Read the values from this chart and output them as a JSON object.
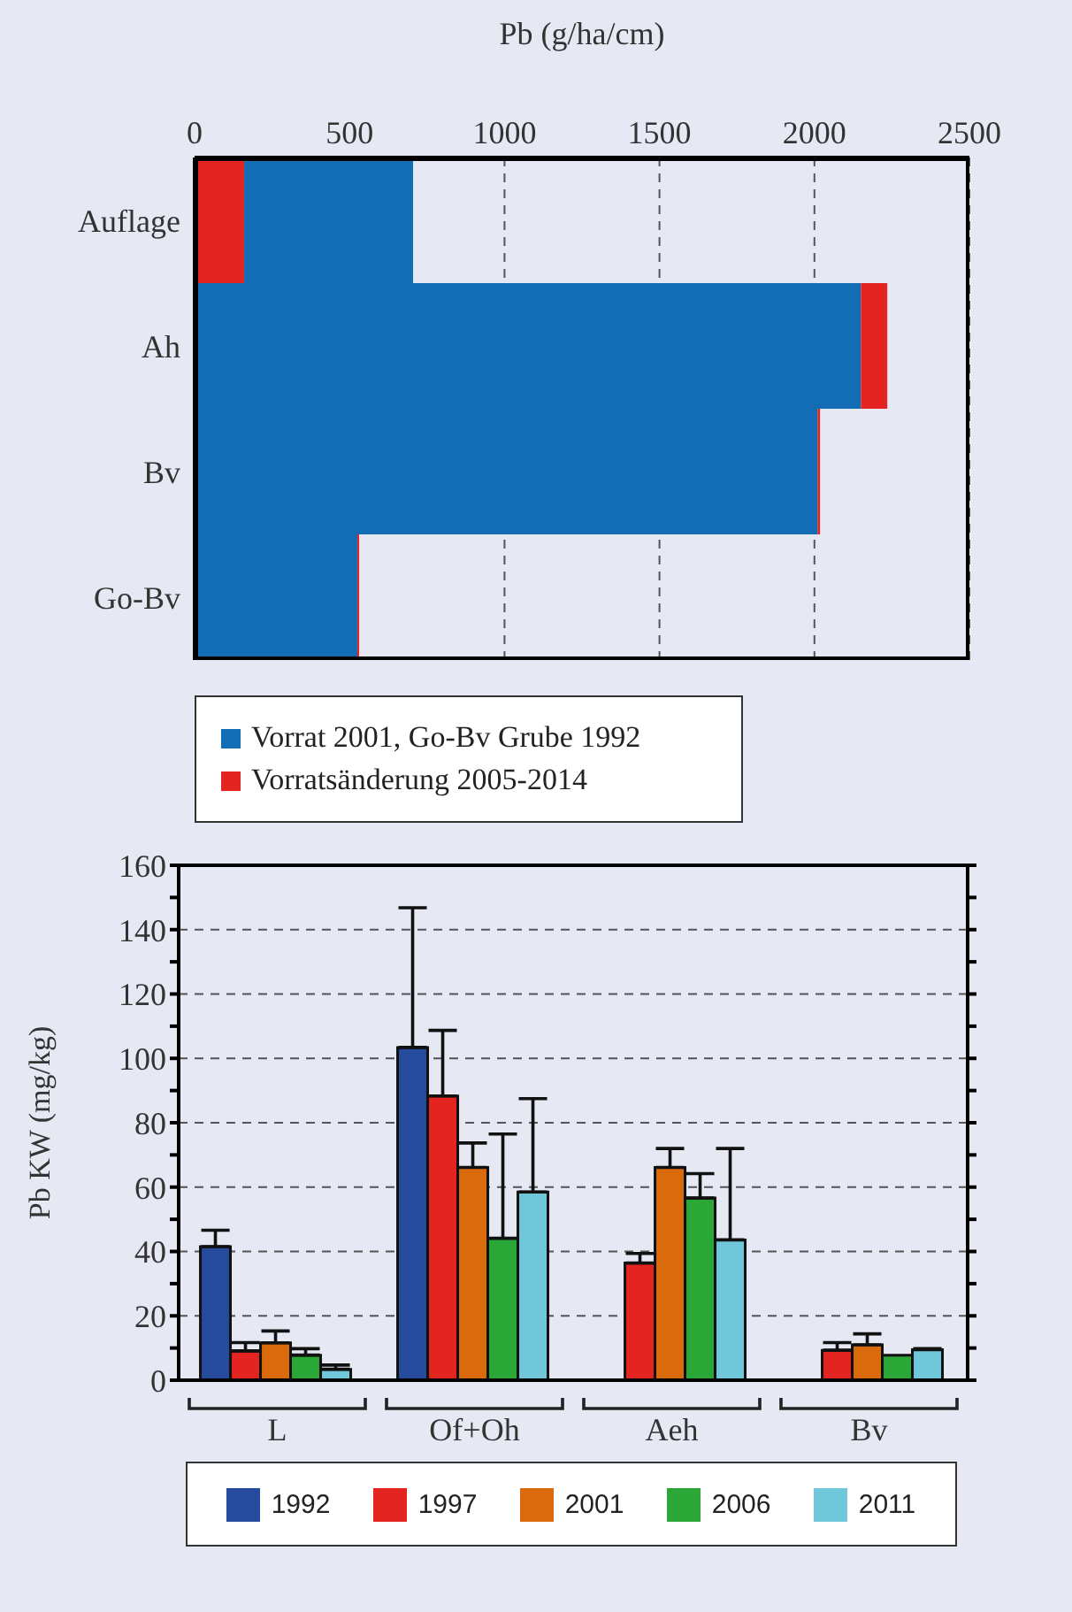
{
  "chart_data": [
    {
      "type": "bar",
      "orientation": "horizontal",
      "xlabel": "Pb (g/ha/cm)",
      "categories": [
        "Auflage",
        "Ah",
        "Bv",
        "Go-Bv"
      ],
      "xlim": [
        0,
        2500
      ],
      "xticks": [
        0,
        500,
        1000,
        1500,
        2000,
        2500
      ],
      "grid": "x",
      "legend": "bottom",
      "series": [
        {
          "name": "Vorrat 2001, Go-Bv Grube 1992",
          "color": "#136db5",
          "values": [
            545,
            2150,
            2010,
            525
          ],
          "base": [
            160,
            0,
            0,
            0
          ]
        },
        {
          "name": "Vorratsänderung 2005-2014",
          "color": "#e32420",
          "values": [
            160,
            85,
            8,
            6
          ],
          "base": [
            0,
            2150,
            2010,
            525
          ]
        }
      ]
    },
    {
      "type": "bar",
      "ylabel": "Pb KW (mg/kg)",
      "categories": [
        "L",
        "Of+Oh",
        "Aeh",
        "Bv"
      ],
      "ylim": [
        0,
        160
      ],
      "yticks": [
        0,
        {
          "value": 10,
          "label": null
        },
        20,
        {
          "value": 30,
          "label": null
        },
        40,
        {
          "value": 50,
          "label": null
        },
        60,
        {
          "value": 70,
          "label": null
        },
        80,
        {
          "value": 90,
          "label": null
        },
        100,
        {
          "value": 110,
          "label": null
        },
        120,
        {
          "value": 130,
          "label": null
        },
        140,
        {
          "value": 150,
          "label": null
        },
        160
      ],
      "grid": "y",
      "legend": "bottom",
      "series": [
        {
          "name": "1992",
          "color": "#264a9c",
          "values": [
            41.5,
            103.4,
            null,
            null
          ],
          "errors": [
            [
              41.5,
              46.6
            ],
            [
              103.4,
              146.8
            ],
            null,
            null
          ]
        },
        {
          "name": "1997",
          "color": "#e32420",
          "values": [
            9.1,
            88.3,
            36.4,
            9.3
          ],
          "errors": [
            [
              9.1,
              11.7
            ],
            [
              88.3,
              108.7
            ],
            [
              36.4,
              39.4
            ],
            [
              9.3,
              11.7
            ]
          ]
        },
        {
          "name": "2001",
          "color": "#d96b0c",
          "values": [
            11.6,
            66.1,
            66.1,
            11
          ],
          "errors": [
            [
              11.6,
              15.3
            ],
            [
              66.1,
              73.7
            ],
            [
              66.1,
              72
            ],
            [
              11,
              14.4
            ]
          ]
        },
        {
          "name": "2006",
          "color": "#2aa737",
          "values": [
            7.8,
            44.1,
            56.6,
            7.8
          ],
          "errors": [
            [
              7.8,
              9.8
            ],
            [
              44.1,
              76.5
            ],
            [
              56.6,
              64.2
            ],
            null
          ]
        },
        {
          "name": "2011",
          "color": "#6fc7d9",
          "values": [
            3.4,
            58.5,
            43.6,
            9.5
          ],
          "errors": [
            [
              3.4,
              4.7
            ],
            [
              58.5,
              87.5
            ],
            [
              43.6,
              72
            ],
            [
              9.5,
              9.8
            ]
          ]
        }
      ]
    }
  ]
}
